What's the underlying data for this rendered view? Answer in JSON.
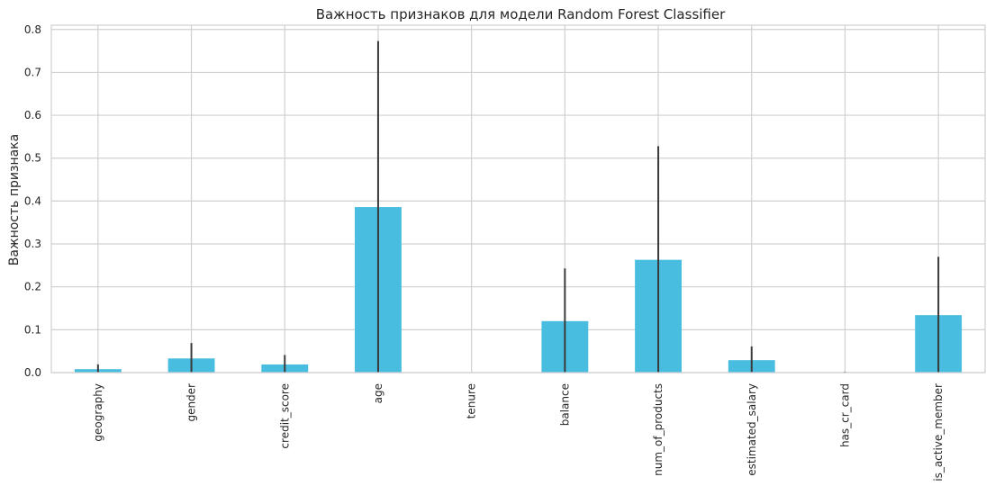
{
  "chart_data": {
    "type": "bar",
    "title": "Важность признаков для модели Random Forest Classifier",
    "xlabel": "",
    "ylabel": "Важность признака",
    "categories": [
      "geography",
      "gender",
      "credit_score",
      "age",
      "tenure",
      "balance",
      "num_of_products",
      "estimated_salary",
      "has_cr_card",
      "is_active_member"
    ],
    "values": [
      0.008,
      0.033,
      0.019,
      0.386,
      0.0,
      0.12,
      0.263,
      0.029,
      0.0,
      0.134
    ],
    "error_upper": [
      0.019,
      0.069,
      0.041,
      0.773,
      0.0,
      0.243,
      0.528,
      0.061,
      0.002,
      0.27
    ],
    "ylim": [
      0,
      0.81
    ],
    "yticks": [
      0.0,
      0.1,
      0.2,
      0.3,
      0.4,
      0.5,
      0.6,
      0.7,
      0.8
    ],
    "ytick_labels": [
      "0.0",
      "0.1",
      "0.2",
      "0.3",
      "0.4",
      "0.5",
      "0.6",
      "0.7",
      "0.8"
    ],
    "grid": true,
    "bar_color": "#48bde0",
    "error_color": "#3a3a3a",
    "grid_color": "#d0d0d0",
    "axes_edge_color": "#cfcfcf"
  }
}
